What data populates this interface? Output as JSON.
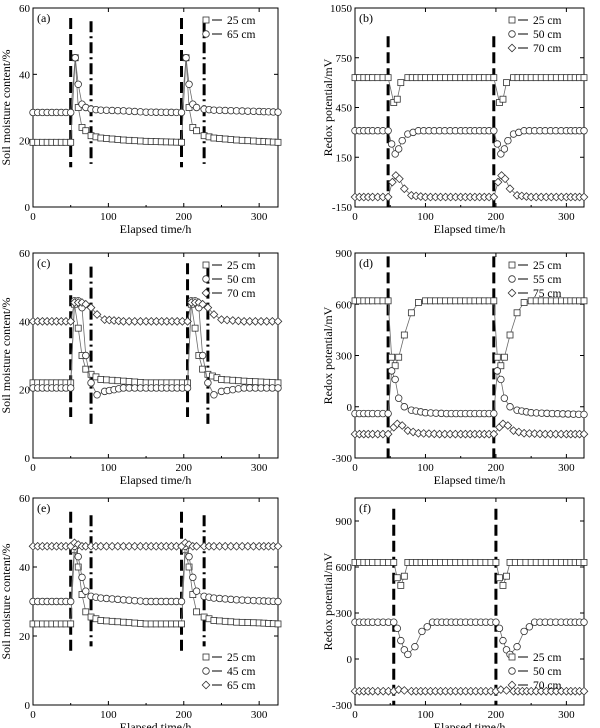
{
  "chart_data": [
    {
      "type": "line",
      "panel": "(a)",
      "xlabel": "Elapsed time/h",
      "ylabel": "Soil moisture content/%",
      "xlim": [
        0,
        325
      ],
      "ylim": [
        0,
        60
      ],
      "xticks": [
        0,
        100,
        200,
        300
      ],
      "yticks": [
        0,
        20,
        40,
        60
      ],
      "legend_position": "top-right",
      "event_lines": [
        {
          "x": 50,
          "style": "dashed",
          "ylim": [
            12,
            57
          ]
        },
        {
          "x": 77,
          "style": "dash-dot",
          "ylim": [
            13,
            56
          ]
        },
        {
          "x": 197,
          "style": "dashed",
          "ylim": [
            12,
            57
          ]
        },
        {
          "x": 227,
          "style": "dash-dot",
          "ylim": [
            13,
            56
          ]
        }
      ],
      "series": [
        {
          "name": "25 cm",
          "marker": "square",
          "x": [
            0,
            25,
            50,
            56,
            60,
            65,
            70,
            77,
            90,
            120,
            150,
            197,
            203,
            207,
            212,
            217,
            227,
            240,
            270,
            300,
            325
          ],
          "y": [
            19.5,
            19.5,
            19.5,
            45,
            30,
            24,
            23,
            21.5,
            20.8,
            20.2,
            19.8,
            19.5,
            45,
            30,
            24,
            23,
            21.5,
            20.8,
            20.2,
            19.8,
            19.5
          ]
        },
        {
          "name": "65 cm",
          "marker": "circle",
          "x": [
            0,
            25,
            50,
            56,
            60,
            65,
            70,
            77,
            90,
            120,
            150,
            197,
            203,
            207,
            212,
            217,
            227,
            240,
            270,
            300,
            325
          ],
          "y": [
            28.5,
            28.5,
            28.5,
            45,
            37,
            31,
            30,
            29.5,
            29.2,
            29,
            28.6,
            28.5,
            45,
            37,
            31,
            30,
            29.5,
            29.2,
            29,
            28.8,
            28.6
          ]
        }
      ]
    },
    {
      "type": "line",
      "panel": "(b)",
      "xlabel": "Elapsed time/h",
      "ylabel": "Redox potential/mV",
      "xlim": [
        0,
        325
      ],
      "ylim": [
        -150,
        1050
      ],
      "xticks": [
        0,
        100,
        200,
        300
      ],
      "yticks": [
        -150,
        150,
        450,
        750,
        1050
      ],
      "legend_position": "top-right",
      "event_lines": [
        {
          "x": 47,
          "style": "dashed",
          "ylim": [
            -150,
            880
          ]
        },
        {
          "x": 197,
          "style": "dashed",
          "ylim": [
            -150,
            880
          ]
        }
      ],
      "series": [
        {
          "name": "25 cm",
          "marker": "square",
          "x": [
            0,
            25,
            47,
            55,
            60,
            65,
            75,
            100,
            150,
            197,
            205,
            210,
            215,
            225,
            250,
            300,
            325
          ],
          "y": [
            630,
            630,
            630,
            480,
            500,
            600,
            630,
            630,
            630,
            630,
            480,
            500,
            600,
            630,
            630,
            630,
            630
          ]
        },
        {
          "name": "50 cm",
          "marker": "circle",
          "x": [
            0,
            25,
            47,
            52,
            57,
            62,
            67,
            75,
            90,
            120,
            150,
            197,
            202,
            207,
            212,
            217,
            225,
            240,
            270,
            300,
            325
          ],
          "y": [
            310,
            310,
            310,
            230,
            170,
            200,
            250,
            290,
            310,
            310,
            310,
            310,
            230,
            170,
            200,
            250,
            290,
            310,
            310,
            310,
            310
          ]
        },
        {
          "name": "70 cm",
          "marker": "diamond",
          "x": [
            0,
            25,
            47,
            53,
            58,
            63,
            70,
            80,
            100,
            150,
            197,
            203,
            208,
            213,
            220,
            230,
            250,
            300,
            325
          ],
          "y": [
            -90,
            -90,
            -90,
            0,
            40,
            20,
            -40,
            -80,
            -90,
            -90,
            -90,
            0,
            40,
            20,
            -40,
            -80,
            -90,
            -90,
            -90
          ]
        }
      ]
    },
    {
      "type": "line",
      "panel": "(c)",
      "xlabel": "Elapsed time/h",
      "ylabel": "Soil moisture content/%",
      "xlim": [
        0,
        325
      ],
      "ylim": [
        0,
        60
      ],
      "xticks": [
        0,
        100,
        200,
        300
      ],
      "yticks": [
        0,
        20,
        40,
        60
      ],
      "legend_position": "top-right",
      "event_lines": [
        {
          "x": 50,
          "style": "dashed",
          "ylim": [
            12,
            57
          ]
        },
        {
          "x": 77,
          "style": "dash-dot",
          "ylim": [
            10,
            56
          ]
        },
        {
          "x": 205,
          "style": "dashed",
          "ylim": [
            12,
            57
          ]
        },
        {
          "x": 232,
          "style": "dash-dot",
          "ylim": [
            10,
            56
          ]
        }
      ],
      "series": [
        {
          "name": "25 cm",
          "marker": "square",
          "x": [
            0,
            25,
            50,
            55,
            60,
            65,
            70,
            77,
            90,
            120,
            150,
            205,
            210,
            215,
            220,
            225,
            232,
            250,
            280,
            325
          ],
          "y": [
            22,
            22,
            22,
            45,
            38,
            30,
            26,
            24.5,
            23,
            22.5,
            22,
            22,
            45,
            38,
            30,
            26,
            24.5,
            23,
            22.5,
            22
          ]
        },
        {
          "name": "50 cm",
          "marker": "circle",
          "x": [
            0,
            25,
            50,
            55,
            60,
            65,
            70,
            77,
            85,
            95,
            120,
            150,
            205,
            210,
            215,
            220,
            225,
            232,
            240,
            250,
            280,
            325
          ],
          "y": [
            20.5,
            20.5,
            20.5,
            46,
            46,
            44,
            30,
            22,
            18.5,
            19.5,
            20.5,
            20.5,
            20.5,
            46,
            46,
            44,
            30,
            22,
            18.5,
            19.5,
            20.5,
            20.5
          ]
        },
        {
          "name": "70 cm",
          "marker": "diamond",
          "x": [
            0,
            25,
            50,
            55,
            60,
            65,
            70,
            77,
            85,
            95,
            120,
            150,
            205,
            210,
            215,
            220,
            225,
            232,
            240,
            250,
            280,
            325
          ],
          "y": [
            40,
            40,
            40,
            45.5,
            45.5,
            45.5,
            45,
            44,
            42,
            40.5,
            40,
            40,
            40,
            45.5,
            45.5,
            45.5,
            45,
            44,
            42,
            40.5,
            40,
            40
          ]
        }
      ]
    },
    {
      "type": "line",
      "panel": "(d)",
      "xlabel": "Elapsed time/h",
      "ylabel": "Redox potential/mV",
      "xlim": [
        0,
        325
      ],
      "ylim": [
        -300,
        900
      ],
      "xticks": [
        0,
        100,
        200,
        300
      ],
      "yticks": [
        -300,
        0,
        300,
        600,
        900
      ],
      "legend_position": "top-right",
      "event_lines": [
        {
          "x": 47,
          "style": "dashed",
          "ylim": [
            -300,
            880
          ]
        },
        {
          "x": 197,
          "style": "dashed",
          "ylim": [
            -300,
            880
          ]
        }
      ],
      "series": [
        {
          "name": "25 cm",
          "marker": "square",
          "x": [
            0,
            25,
            47,
            52,
            57,
            62,
            70,
            80,
            90,
            100,
            150,
            197,
            202,
            207,
            212,
            220,
            230,
            240,
            250,
            300,
            325
          ],
          "y": [
            620,
            620,
            620,
            290,
            240,
            290,
            420,
            550,
            610,
            620,
            620,
            620,
            290,
            240,
            290,
            420,
            550,
            610,
            620,
            620,
            620
          ]
        },
        {
          "name": "55 cm",
          "marker": "circle",
          "x": [
            0,
            25,
            47,
            52,
            57,
            62,
            70,
            80,
            100,
            130,
            197,
            202,
            207,
            212,
            220,
            230,
            250,
            280,
            325
          ],
          "y": [
            -40,
            -40,
            -40,
            210,
            160,
            50,
            0,
            -20,
            -35,
            -40,
            -40,
            210,
            160,
            50,
            0,
            -20,
            -35,
            -40,
            -45
          ]
        },
        {
          "name": "75 cm",
          "marker": "diamond",
          "x": [
            0,
            25,
            47,
            55,
            60,
            67,
            75,
            90,
            120,
            150,
            197,
            205,
            210,
            217,
            225,
            240,
            270,
            300,
            325
          ],
          "y": [
            -160,
            -160,
            -160,
            -120,
            -100,
            -110,
            -140,
            -155,
            -160,
            -160,
            -160,
            -120,
            -100,
            -110,
            -140,
            -155,
            -160,
            -160,
            -160
          ]
        }
      ]
    },
    {
      "type": "line",
      "panel": "(e)",
      "xlabel": "Elapsed time/h",
      "ylabel": "Soil moisture content/%",
      "xlim": [
        0,
        325
      ],
      "ylim": [
        0,
        60
      ],
      "xticks": [
        0,
        100,
        200,
        300
      ],
      "yticks": [
        0,
        20,
        40,
        60
      ],
      "legend_position": "bottom-right",
      "event_lines": [
        {
          "x": 50,
          "style": "dashed",
          "ylim": [
            15,
            56
          ]
        },
        {
          "x": 77,
          "style": "dash-dot",
          "ylim": [
            17,
            55
          ]
        },
        {
          "x": 197,
          "style": "dashed",
          "ylim": [
            15,
            56
          ]
        },
        {
          "x": 227,
          "style": "dash-dot",
          "ylim": [
            17,
            55
          ]
        }
      ],
      "series": [
        {
          "name": "25 cm",
          "marker": "square",
          "x": [
            0,
            25,
            50,
            55,
            60,
            65,
            70,
            77,
            90,
            120,
            150,
            197,
            202,
            207,
            212,
            217,
            227,
            240,
            270,
            300,
            325
          ],
          "y": [
            23.5,
            23.5,
            23.5,
            45,
            40,
            32,
            27,
            25.5,
            24.5,
            24,
            23.5,
            23.5,
            45,
            40,
            32,
            27,
            25.5,
            24.5,
            24,
            23.8,
            23.5
          ]
        },
        {
          "name": "45 cm",
          "marker": "circle",
          "x": [
            0,
            25,
            50,
            55,
            60,
            65,
            70,
            77,
            90,
            120,
            150,
            197,
            202,
            207,
            212,
            217,
            227,
            240,
            270,
            300,
            325
          ],
          "y": [
            30,
            30,
            30,
            46,
            43,
            37,
            33,
            31.5,
            31,
            30.5,
            30,
            30,
            46,
            43,
            37,
            33,
            31.5,
            31,
            30.5,
            30.2,
            30
          ]
        },
        {
          "name": "65 cm",
          "marker": "diamond",
          "x": [
            0,
            25,
            50,
            55,
            60,
            65,
            70,
            77,
            90,
            120,
            150,
            197,
            202,
            207,
            212,
            217,
            227,
            240,
            270,
            300,
            325
          ],
          "y": [
            46,
            46,
            46,
            47,
            46.5,
            46,
            46,
            46,
            46,
            46,
            46,
            46,
            47,
            46.5,
            46,
            46,
            46,
            46,
            46,
            46,
            46
          ]
        }
      ]
    },
    {
      "type": "line",
      "panel": "(f)",
      "xlabel": "Elapsed time/h",
      "ylabel": "Redox potential/mV",
      "xlim": [
        0,
        325
      ],
      "ylim": [
        -300,
        1050
      ],
      "xticks": [
        0,
        100,
        200,
        300
      ],
      "yticks": [
        -300,
        0,
        300,
        600,
        900
      ],
      "legend_position": "bottom-right",
      "event_lines": [
        {
          "x": 55,
          "style": "dashed",
          "ylim": [
            -300,
            980
          ]
        },
        {
          "x": 200,
          "style": "dashed",
          "ylim": [
            -300,
            980
          ]
        }
      ],
      "series": [
        {
          "name": "25 cm",
          "marker": "square",
          "x": [
            0,
            25,
            55,
            60,
            65,
            70,
            75,
            100,
            150,
            200,
            205,
            210,
            215,
            220,
            250,
            300,
            325
          ],
          "y": [
            630,
            630,
            630,
            530,
            480,
            540,
            630,
            630,
            630,
            630,
            530,
            480,
            540,
            630,
            630,
            630,
            630
          ]
        },
        {
          "name": "50 cm",
          "marker": "circle",
          "x": [
            0,
            25,
            55,
            60,
            65,
            70,
            75,
            85,
            95,
            110,
            150,
            200,
            205,
            210,
            215,
            220,
            230,
            240,
            255,
            300,
            325
          ],
          "y": [
            240,
            240,
            240,
            200,
            120,
            60,
            30,
            80,
            180,
            240,
            240,
            240,
            200,
            120,
            60,
            30,
            80,
            180,
            240,
            240,
            240
          ]
        },
        {
          "name": "70 cm",
          "marker": "diamond",
          "x": [
            0,
            25,
            55,
            62,
            70,
            80,
            100,
            150,
            200,
            207,
            215,
            225,
            250,
            300,
            325
          ],
          "y": [
            -210,
            -210,
            -210,
            -200,
            -205,
            -210,
            -210,
            -210,
            -210,
            -200,
            -205,
            -210,
            -210,
            -210,
            -210
          ]
        }
      ]
    }
  ]
}
